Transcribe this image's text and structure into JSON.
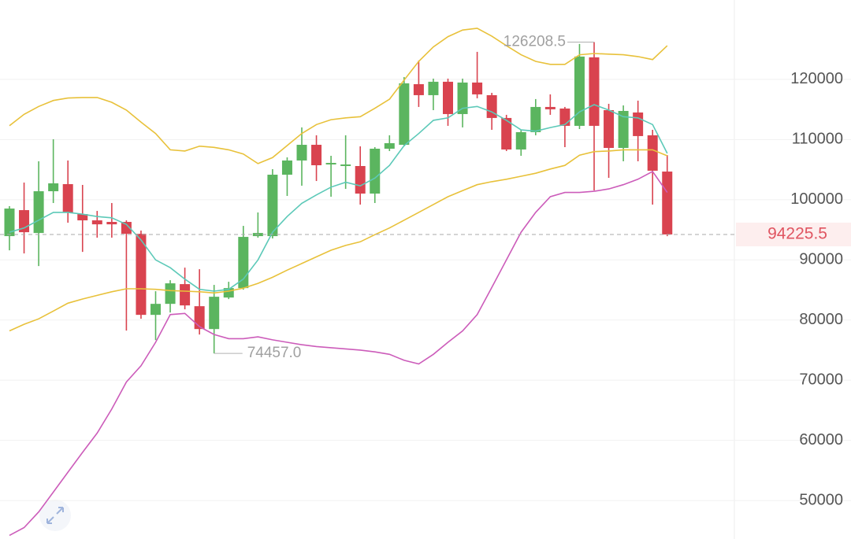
{
  "chart_data": {
    "type": "candlestick",
    "ylim": [
      43600,
      133200
    ],
    "yticks": [
      50000,
      60000,
      70000,
      80000,
      90000,
      100000,
      110000,
      120000
    ],
    "grid": true,
    "up_color": "#5bb55f",
    "down_color": "#d9434f",
    "candles": {
      "open": [
        93950,
        98270,
        94470,
        101410,
        102590,
        97620,
        96570,
        96310,
        96310,
        94340,
        80860,
        82690,
        85970,
        82300,
        78500,
        83740,
        85310,
        93950,
        93950,
        104160,
        106520,
        109130,
        105860,
        105600,
        105600,
        101020,
        108480,
        109130,
        119210,
        117380,
        119610,
        114240,
        119480,
        117380,
        113590,
        108350,
        111230,
        115420,
        115160,
        112280,
        123670,
        114890,
        108610,
        114500,
        110710,
        104680
      ],
      "high": [
        98930,
        102850,
        106390,
        110050,
        106520,
        102460,
        98140,
        99450,
        96570,
        94870,
        84790,
        86620,
        88710,
        88450,
        85840,
        86360,
        95650,
        97880,
        105080,
        107040,
        112020,
        110710,
        107300,
        110710,
        108870,
        108740,
        110710,
        120390,
        123140,
        120130,
        120130,
        120130,
        124580,
        117770,
        114110,
        111620,
        116730,
        117510,
        115420,
        125900,
        126208.5,
        115940,
        115680,
        116470,
        111620,
        107430
      ],
      "low": [
        91590,
        91070,
        88980,
        99450,
        96180,
        91330,
        93690,
        93690,
        78240,
        80210,
        76670,
        81250,
        81780,
        77590,
        74457,
        83480,
        85050,
        93690,
        93560,
        100630,
        102330,
        103110,
        100500,
        101800,
        99190,
        99450,
        108090,
        108870,
        115420,
        114890,
        112280,
        112020,
        116860,
        111620,
        108090,
        107300,
        110710,
        114110,
        108740,
        111750,
        101540,
        103640,
        106390,
        106390,
        99190,
        93950
      ],
      "close": [
        98530,
        94600,
        101410,
        102720,
        97880,
        96570,
        95910,
        95910,
        94340,
        80860,
        82690,
        86100,
        82430,
        78500,
        83870,
        85310,
        93820,
        94470,
        104160,
        106520,
        109130,
        105730,
        106120,
        105860,
        101020,
        108480,
        109400,
        119350,
        117380,
        119610,
        114240,
        119480,
        117510,
        113590,
        108350,
        111230,
        115420,
        115030,
        112280,
        123800,
        112280,
        108610,
        114760,
        110580,
        104820,
        94225.5
      ]
    },
    "lines": [
      {
        "color": "#e8c13a",
        "values": [
          112300,
          114200,
          115500,
          116500,
          116900,
          117000,
          117000,
          116200,
          114900,
          112900,
          111000,
          108300,
          108100,
          108900,
          108700,
          108300,
          107600,
          106000,
          107000,
          109000,
          111000,
          112500,
          113300,
          113600,
          113800,
          115200,
          116700,
          119900,
          123000,
          125400,
          127100,
          128200,
          128500,
          127200,
          125600,
          124100,
          123000,
          122500,
          122500,
          124100,
          124300,
          124200,
          124100,
          123800,
          123300,
          125600
        ]
      },
      {
        "color": "#5cc9b8",
        "values": [
          94600,
          95300,
          96600,
          97900,
          97900,
          97600,
          97200,
          97000,
          95900,
          93300,
          90000,
          88700,
          86800,
          85100,
          84800,
          85100,
          86800,
          90000,
          94600,
          97200,
          99400,
          100800,
          102100,
          102900,
          102300,
          103600,
          105700,
          109000,
          111000,
          113200,
          113600,
          115200,
          115500,
          114600,
          113200,
          111600,
          111400,
          112000,
          112500,
          114600,
          115800,
          114900,
          113800,
          113600,
          112500,
          107700
        ]
      },
      {
        "color": "#e8c13a",
        "values": [
          78200,
          79300,
          80200,
          81500,
          82800,
          83500,
          84100,
          84700,
          85200,
          85200,
          85100,
          84900,
          84800,
          84700,
          84500,
          84800,
          85300,
          86100,
          87100,
          88300,
          89400,
          90500,
          91600,
          92400,
          93000,
          94200,
          95300,
          96600,
          97900,
          99200,
          100500,
          101500,
          102500,
          103000,
          103400,
          103900,
          104400,
          105100,
          105700,
          107400,
          108000,
          108100,
          108300,
          108300,
          108300,
          107300
        ]
      },
      {
        "color": "#cc5cba",
        "values": [
          44200,
          45500,
          48100,
          51400,
          54700,
          58000,
          61200,
          65200,
          69700,
          72400,
          76300,
          80900,
          81100,
          78900,
          77600,
          76900,
          76900,
          77200,
          76700,
          76300,
          75900,
          75600,
          75400,
          75200,
          75000,
          74700,
          74300,
          73300,
          72700,
          74300,
          76300,
          78200,
          80900,
          85400,
          90000,
          94600,
          97900,
          100500,
          101200,
          101200,
          101400,
          101800,
          102500,
          103400,
          104700,
          101200
        ]
      }
    ],
    "high_label": 126208.5,
    "low_label": {
      "value": 74457,
      "label": "74457.0"
    },
    "last_price": 94225.5,
    "last_price_color": "#e05561"
  }
}
